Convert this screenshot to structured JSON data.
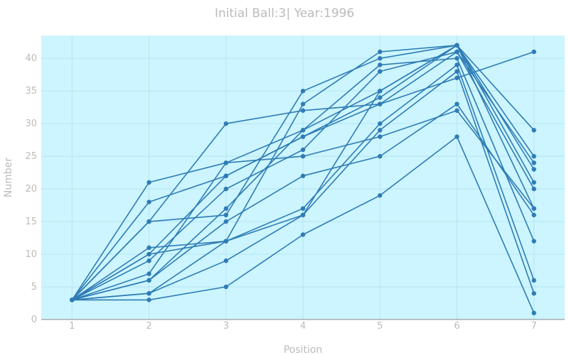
{
  "chart_data": {
    "type": "line",
    "title": "Initial Ball:3| Year:1996",
    "xlabel": "Position",
    "ylabel": "Number",
    "x": [
      1,
      2,
      3,
      4,
      5,
      6,
      7
    ],
    "x_tick_labels": [
      "1",
      "2",
      "3",
      "4",
      "5",
      "6",
      "7"
    ],
    "y_tick_labels": [
      "0",
      "5",
      "10",
      "15",
      "20",
      "25",
      "30",
      "35",
      "40"
    ],
    "xlim": [
      0.6,
      7.4
    ],
    "ylim": [
      0,
      43.5
    ],
    "grid": true,
    "legend": "none",
    "colors": {
      "plot_bg": "#ccf5ff",
      "line": "#2f7cb5",
      "grid": "#b5e5f2",
      "text": "#bbbbbb",
      "axis": "#888888"
    },
    "series": [
      {
        "values": [
          3,
          21,
          24,
          29,
          35,
          42,
          29
        ]
      },
      {
        "values": [
          3,
          18,
          22,
          28,
          33,
          37,
          41
        ]
      },
      {
        "values": [
          3,
          15,
          16,
          35,
          40,
          42,
          25
        ]
      },
      {
        "values": [
          3,
          15,
          30,
          32,
          33,
          41,
          24
        ]
      },
      {
        "values": [
          3,
          11,
          12,
          33,
          41,
          42,
          21
        ]
      },
      {
        "values": [
          3,
          10,
          22,
          28,
          34,
          42,
          23
        ]
      },
      {
        "values": [
          3,
          9,
          20,
          26,
          38,
          41,
          20
        ]
      },
      {
        "values": [
          3,
          7,
          24,
          25,
          28,
          32,
          17
        ]
      },
      {
        "values": [
          3,
          6,
          17,
          29,
          39,
          40,
          12
        ]
      },
      {
        "values": [
          3,
          6,
          15,
          22,
          25,
          33,
          16
        ]
      },
      {
        "values": [
          3,
          4,
          12,
          17,
          30,
          39,
          6
        ]
      },
      {
        "values": [
          3,
          4,
          9,
          16,
          29,
          38,
          4
        ]
      },
      {
        "values": [
          3,
          3,
          5,
          13,
          19,
          28,
          1
        ]
      },
      {
        "values": [
          3,
          10,
          12,
          16,
          35,
          42,
          17
        ]
      }
    ]
  }
}
